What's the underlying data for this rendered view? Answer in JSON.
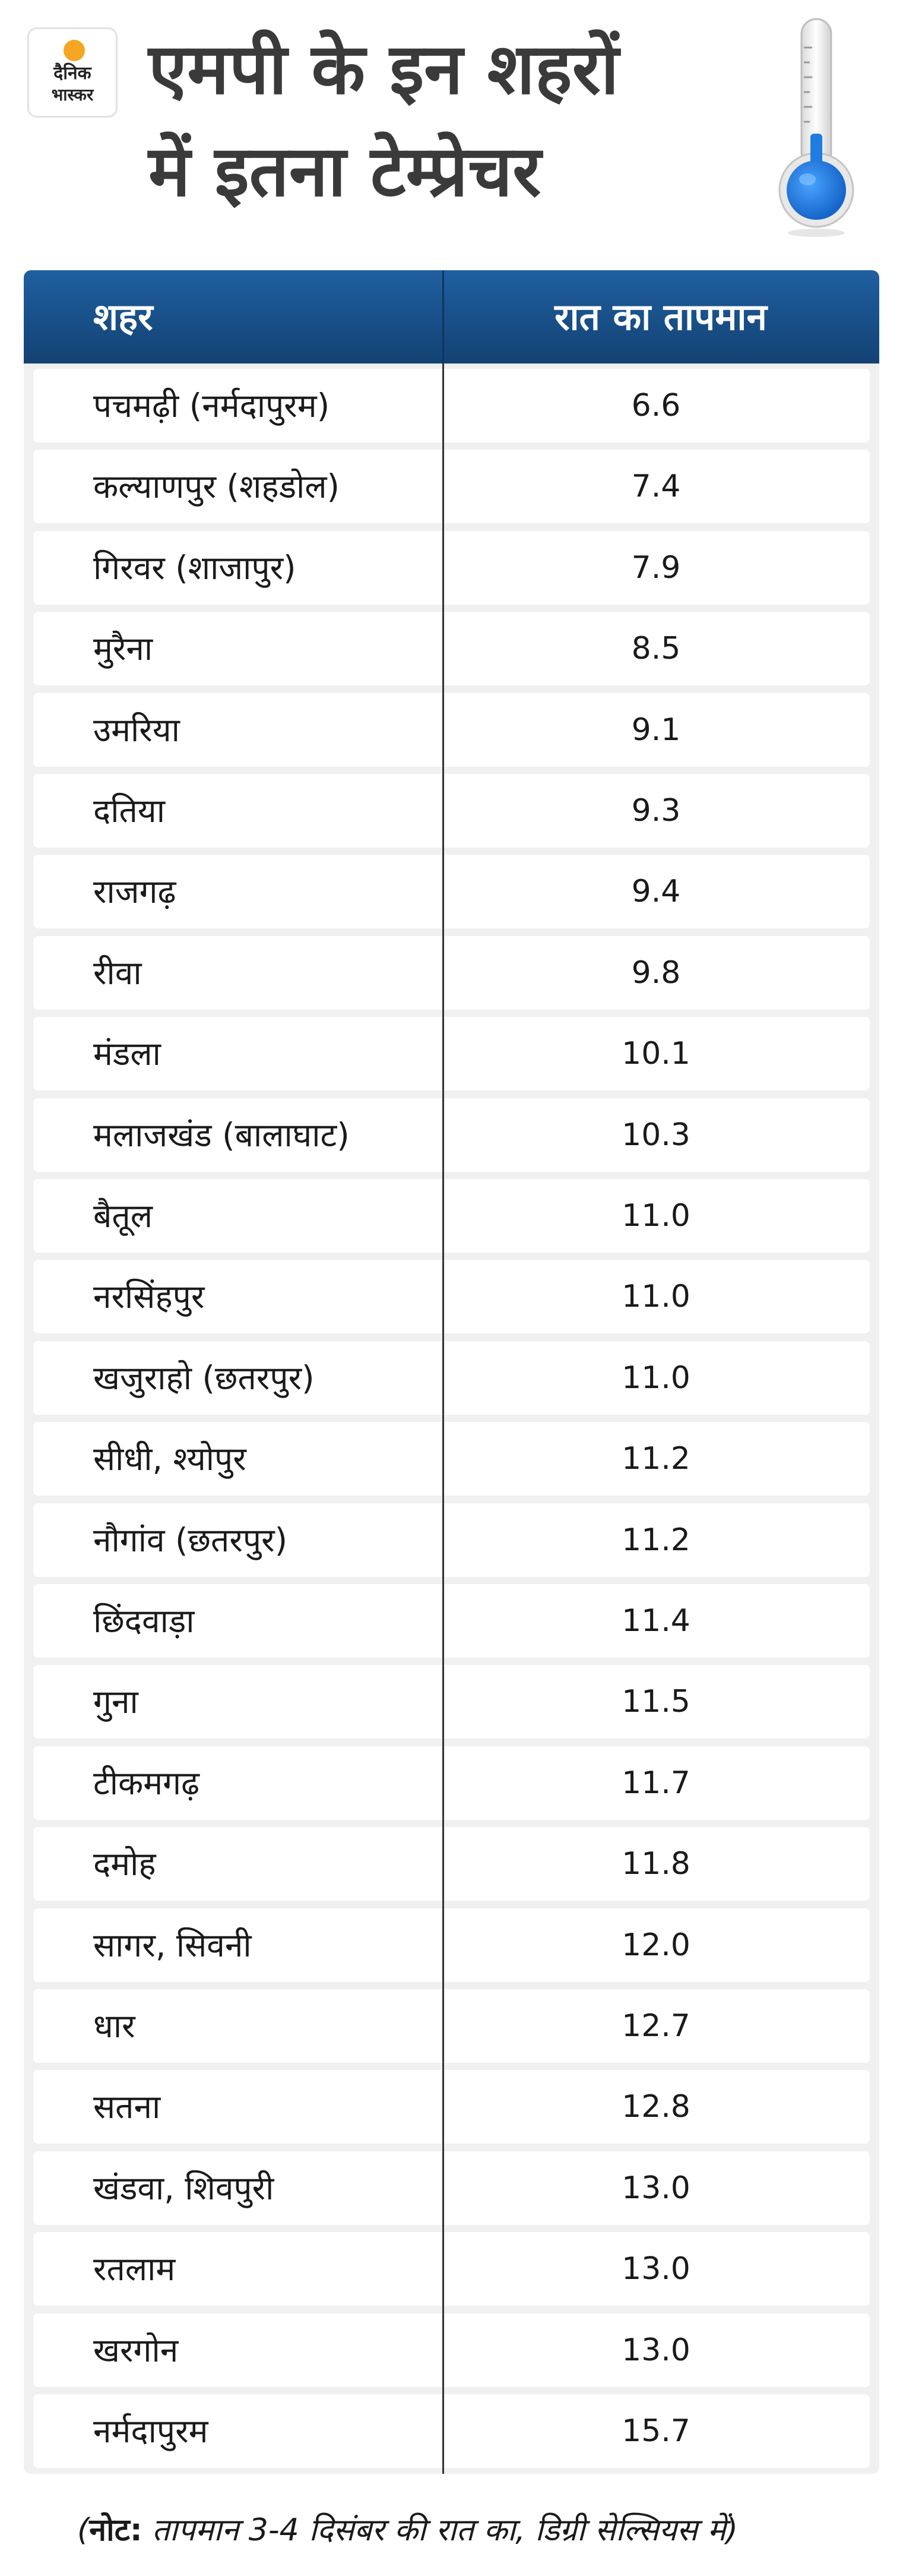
{
  "logo": {
    "line1": "दैनिक",
    "line2": "भास्कर"
  },
  "title": {
    "line1": "एमपी के इन शहरों",
    "line2": "में इतना टेम्प्रेचर"
  },
  "icons": {
    "thermometer": "thermometer-icon",
    "logo": "dainik-bhaskar-logo"
  },
  "colors": {
    "header_bg": "#1b5795",
    "mercury": "#1f7de0",
    "row_bg": "#ffffff",
    "table_bg": "#f0f0f0"
  },
  "chart_data": {
    "type": "table",
    "columns": [
      "शहर",
      "रात का तापमान"
    ],
    "rows": [
      {
        "city": "पचमढ़ी (नर्मदापुरम)",
        "temp": "6.6"
      },
      {
        "city": "कल्याणपुर (शहडोल)",
        "temp": "7.4"
      },
      {
        "city": "गिरवर (शाजापुर)",
        "temp": "7.9"
      },
      {
        "city": "मुरैना",
        "temp": "8.5"
      },
      {
        "city": "उमरिया",
        "temp": "9.1"
      },
      {
        "city": "दतिया",
        "temp": "9.3"
      },
      {
        "city": "राजगढ़",
        "temp": "9.4"
      },
      {
        "city": "रीवा",
        "temp": "9.8"
      },
      {
        "city": "मंडला",
        "temp": "10.1"
      },
      {
        "city": "मलाजखंड (बालाघाट)",
        "temp": "10.3"
      },
      {
        "city": "बैतूल",
        "temp": "11.0"
      },
      {
        "city": "नरसिंहपुर",
        "temp": "11.0"
      },
      {
        "city": "खजुराहो (छतरपुर)",
        "temp": "11.0"
      },
      {
        "city": "सीधी, श्योपुर",
        "temp": "11.2"
      },
      {
        "city": "नौगांव (छतरपुर)",
        "temp": "11.2"
      },
      {
        "city": "छिंदवाड़ा",
        "temp": "11.4"
      },
      {
        "city": "गुना",
        "temp": "11.5"
      },
      {
        "city": "टीकमगढ़",
        "temp": "11.7"
      },
      {
        "city": "दमोह",
        "temp": "11.8"
      },
      {
        "city": "सागर, सिवनी",
        "temp": "12.0"
      },
      {
        "city": "धार",
        "temp": "12.7"
      },
      {
        "city": "सतना",
        "temp": "12.8"
      },
      {
        "city": "खंडवा, शिवपुरी",
        "temp": "13.0"
      },
      {
        "city": "रतलाम",
        "temp": "13.0"
      },
      {
        "city": "खरगोन",
        "temp": "13.0"
      },
      {
        "city": "नर्मदापुरम",
        "temp": "15.7"
      }
    ]
  },
  "note": {
    "open": "(",
    "label": "नोट:",
    "text": " तापमान 3-4 दिसंबर की रात का, डिग्री सेल्सियस में)"
  }
}
